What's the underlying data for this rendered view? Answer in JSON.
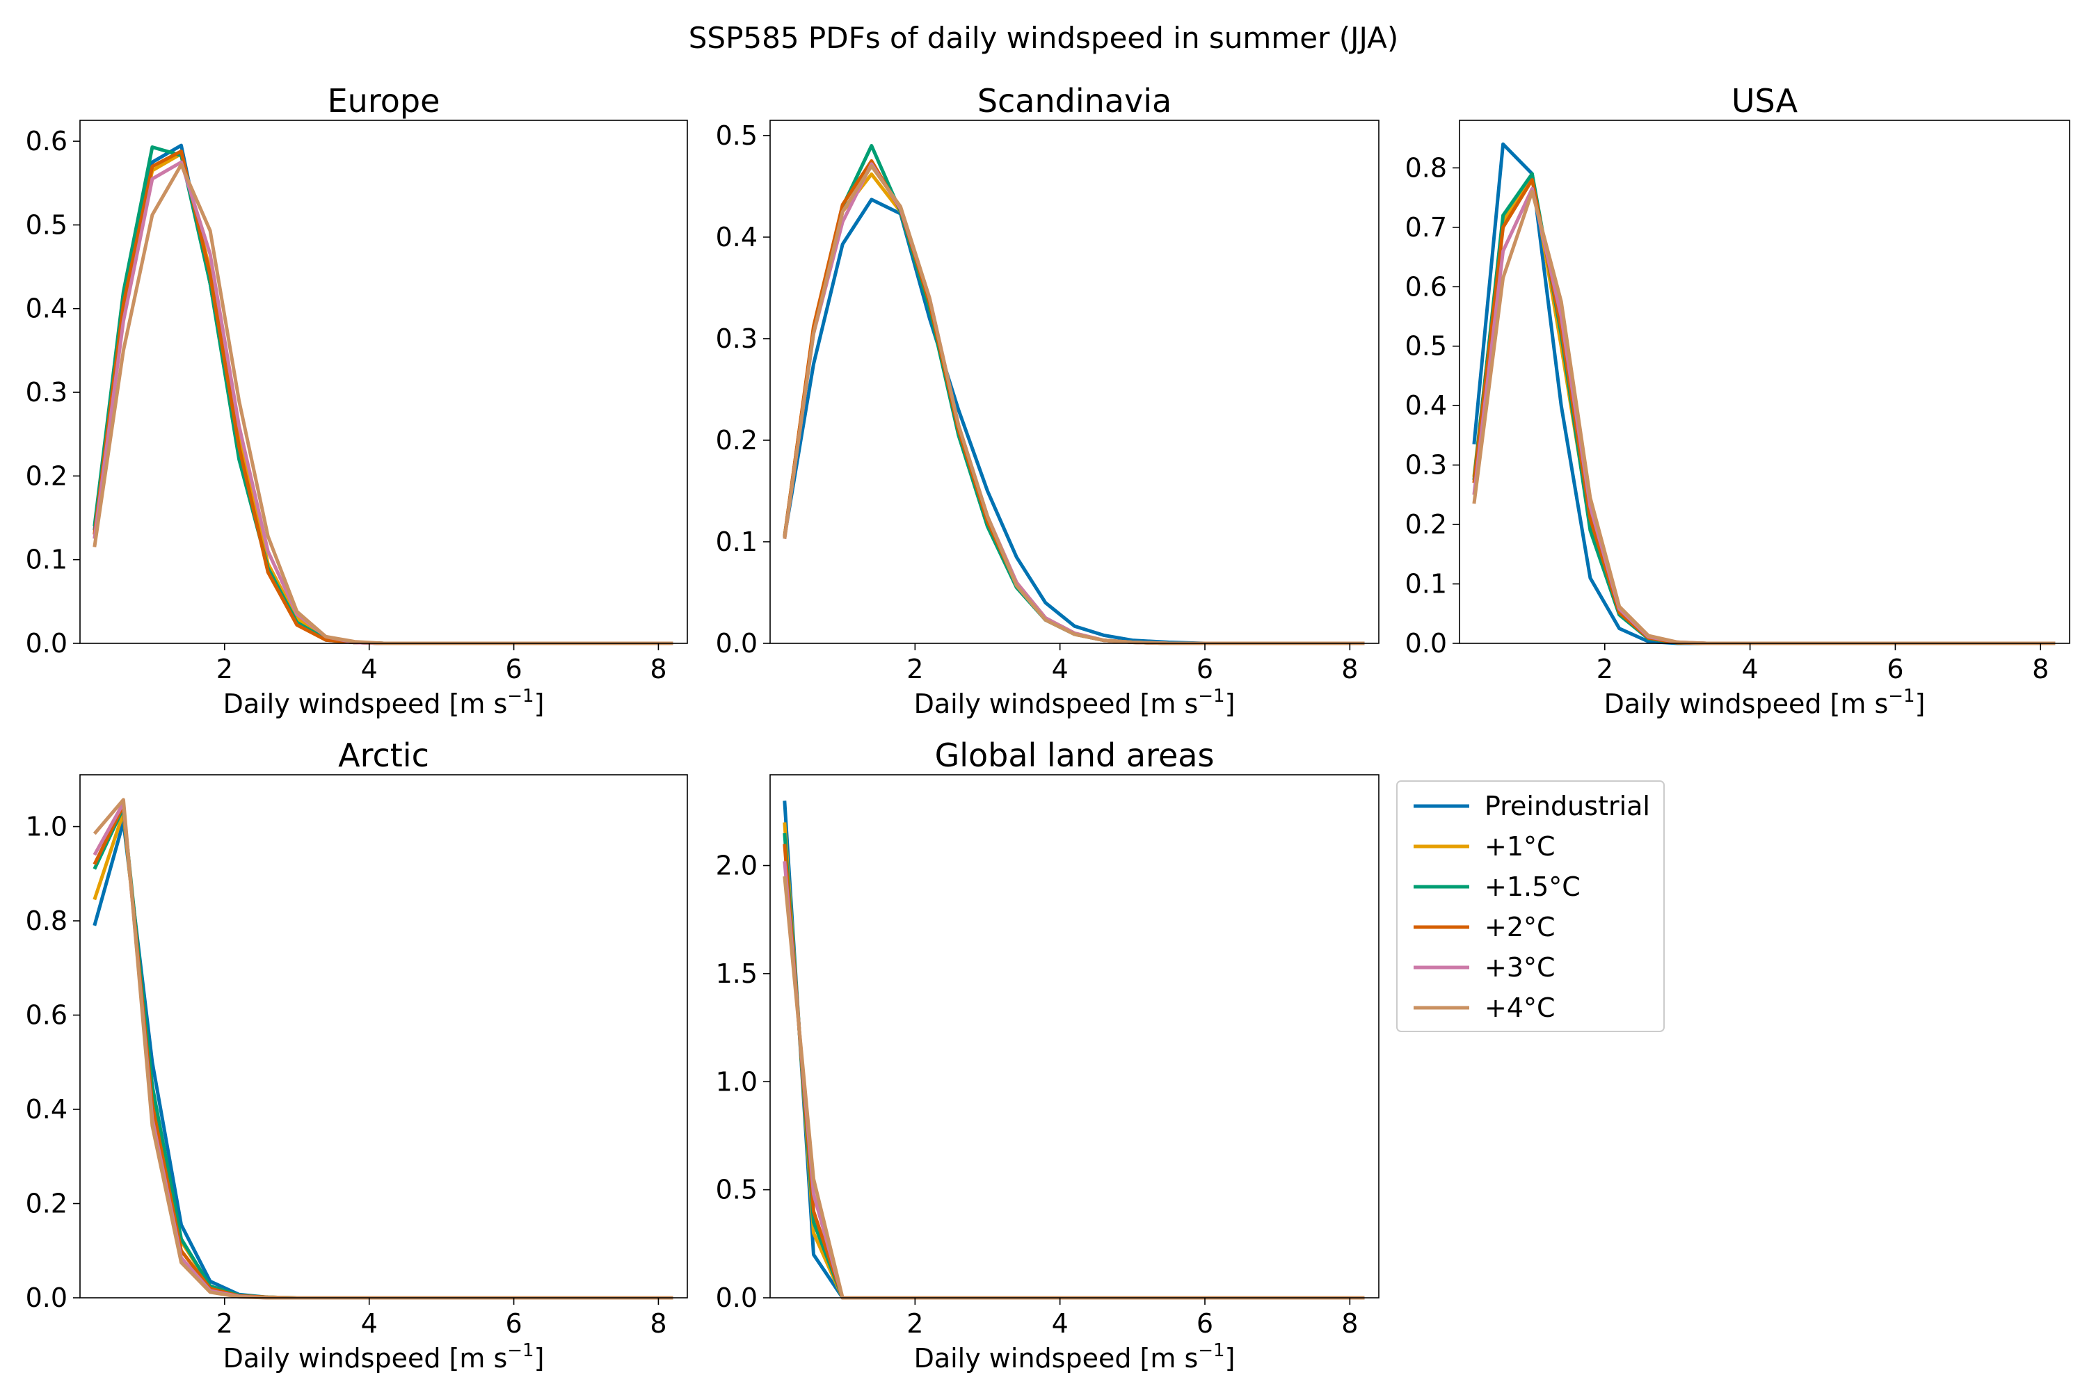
{
  "figure": {
    "title": "SSP585 PDFs of daily windspeed in summer (JJA)"
  },
  "legend": {
    "placement": "right of bottom row, upper",
    "entries": [
      {
        "name": "Preindustrial",
        "color": "#0072b2"
      },
      {
        "name": "+1°C",
        "color": "#e69f00"
      },
      {
        "name": "+1.5°C",
        "color": "#009e73"
      },
      {
        "name": "+2°C",
        "color": "#d55e00"
      },
      {
        "name": "+3°C",
        "color": "#cc79a7"
      },
      {
        "name": "+4°C",
        "color": "#ca9161"
      }
    ]
  },
  "chart_data": [
    {
      "type": "line",
      "title": "Europe",
      "xlabel": "Daily windspeed [m s",
      "xlabel_sup": "−1",
      "xlabel_end": "]",
      "xlim": [
        0,
        8.4
      ],
      "ylim": [
        0,
        0.625
      ],
      "xticks": [
        2,
        4,
        6,
        8
      ],
      "xtick_labels": [
        "2",
        "4",
        "6",
        "8"
      ],
      "yticks": [
        0,
        0.1,
        0.2,
        0.3,
        0.4,
        0.5,
        0.6
      ],
      "ytick_labels": [
        "0.0",
        "0.1",
        "0.2",
        "0.3",
        "0.4",
        "0.5",
        "0.6"
      ],
      "x": [
        0.2,
        0.6,
        1.0,
        1.4,
        1.8,
        2.2,
        2.6,
        3.0,
        3.4,
        3.8,
        4.2,
        4.6,
        5.0,
        5.5,
        6.0,
        6.5,
        7.0,
        7.5,
        8.2
      ],
      "series": [
        {
          "name": "Preindustrial",
          "values": [
            0.135,
            0.415,
            0.575,
            0.595,
            0.43,
            0.23,
            0.09,
            0.025,
            0.004,
            0.001,
            0,
            0,
            0,
            0,
            0,
            0,
            0,
            0,
            0
          ]
        },
        {
          "name": "+1°C",
          "values": [
            0.13,
            0.4,
            0.565,
            0.585,
            0.445,
            0.245,
            0.095,
            0.03,
            0.006,
            0.001,
            0,
            0,
            0,
            0,
            0,
            0,
            0,
            0,
            0
          ]
        },
        {
          "name": "+1.5°C",
          "values": [
            0.14,
            0.42,
            0.593,
            0.583,
            0.43,
            0.22,
            0.09,
            0.025,
            0.005,
            0.001,
            0,
            0,
            0,
            0,
            0,
            0,
            0,
            0,
            0
          ]
        },
        {
          "name": "+2°C",
          "values": [
            0.13,
            0.405,
            0.57,
            0.588,
            0.44,
            0.235,
            0.085,
            0.022,
            0.004,
            0.001,
            0,
            0,
            0,
            0,
            0,
            0,
            0,
            0,
            0
          ]
        },
        {
          "name": "+3°C",
          "values": [
            0.125,
            0.385,
            0.555,
            0.575,
            0.465,
            0.26,
            0.11,
            0.035,
            0.008,
            0.001,
            0,
            0,
            0,
            0,
            0,
            0,
            0,
            0,
            0
          ]
        },
        {
          "name": "+4°C",
          "values": [
            0.115,
            0.35,
            0.512,
            0.572,
            0.493,
            0.29,
            0.128,
            0.038,
            0.008,
            0.002,
            0,
            0,
            0,
            0,
            0,
            0,
            0,
            0,
            0
          ]
        }
      ]
    },
    {
      "type": "line",
      "title": "Scandinavia",
      "xlabel": "Daily windspeed [m s",
      "xlabel_sup": "−1",
      "xlabel_end": "]",
      "xlim": [
        0,
        8.4
      ],
      "ylim": [
        0,
        0.515
      ],
      "xticks": [
        2,
        4,
        6,
        8
      ],
      "xtick_labels": [
        "2",
        "4",
        "6",
        "8"
      ],
      "yticks": [
        0,
        0.1,
        0.2,
        0.3,
        0.4,
        0.5
      ],
      "ytick_labels": [
        "0.0",
        "0.1",
        "0.2",
        "0.3",
        "0.4",
        "0.5"
      ],
      "x": [
        0.2,
        0.6,
        1.0,
        1.4,
        1.8,
        2.2,
        2.6,
        3.0,
        3.4,
        3.8,
        4.2,
        4.6,
        5.0,
        5.5,
        6.0,
        6.5,
        7.0,
        7.5,
        8.2
      ],
      "series": [
        {
          "name": "Preindustrial",
          "values": [
            0.105,
            0.275,
            0.393,
            0.437,
            0.423,
            0.32,
            0.23,
            0.15,
            0.085,
            0.04,
            0.017,
            0.008,
            0.003,
            0.001,
            0,
            0,
            0,
            0,
            0
          ]
        },
        {
          "name": "+1°C",
          "values": [
            0.105,
            0.31,
            0.425,
            0.462,
            0.425,
            0.33,
            0.21,
            0.125,
            0.06,
            0.025,
            0.01,
            0.003,
            0.001,
            0,
            0,
            0,
            0,
            0,
            0
          ]
        },
        {
          "name": "+1.5°C",
          "values": [
            0.105,
            0.31,
            0.43,
            0.49,
            0.425,
            0.33,
            0.205,
            0.115,
            0.055,
            0.023,
            0.009,
            0.003,
            0.001,
            0,
            0,
            0,
            0,
            0,
            0
          ]
        },
        {
          "name": "+2°C",
          "values": [
            0.105,
            0.312,
            0.432,
            0.475,
            0.427,
            0.335,
            0.21,
            0.12,
            0.058,
            0.024,
            0.009,
            0.003,
            0.001,
            0,
            0,
            0,
            0,
            0,
            0
          ]
        },
        {
          "name": "+3°C",
          "values": [
            0.103,
            0.305,
            0.415,
            0.472,
            0.428,
            0.34,
            0.215,
            0.125,
            0.06,
            0.025,
            0.01,
            0.003,
            0.001,
            0,
            0,
            0,
            0,
            0,
            0
          ]
        },
        {
          "name": "+4°C",
          "values": [
            0.103,
            0.305,
            0.425,
            0.47,
            0.43,
            0.34,
            0.215,
            0.125,
            0.057,
            0.023,
            0.009,
            0.003,
            0.001,
            0,
            0,
            0,
            0,
            0,
            0
          ]
        }
      ]
    },
    {
      "type": "line",
      "title": "USA",
      "xlabel": "Daily windspeed [m s",
      "xlabel_sup": "−1",
      "xlabel_end": "]",
      "xlim": [
        0,
        8.4
      ],
      "ylim": [
        0,
        0.88
      ],
      "xticks": [
        2,
        4,
        6,
        8
      ],
      "xtick_labels": [
        "2",
        "4",
        "6",
        "8"
      ],
      "yticks": [
        0,
        0.1,
        0.2,
        0.3,
        0.4,
        0.5,
        0.6,
        0.7,
        0.8
      ],
      "ytick_labels": [
        "0.0",
        "0.1",
        "0.2",
        "0.3",
        "0.4",
        "0.5",
        "0.6",
        "0.7",
        "0.8"
      ],
      "x": [
        0.2,
        0.6,
        1.0,
        1.4,
        1.8,
        2.2,
        2.6,
        3.0,
        3.4,
        3.8,
        4.2,
        4.6,
        5.0,
        5.5,
        6.0,
        6.5,
        7.0,
        7.5,
        8.2
      ],
      "series": [
        {
          "name": "Preindustrial",
          "values": [
            0.335,
            0.84,
            0.79,
            0.4,
            0.11,
            0.025,
            0.003,
            0,
            0,
            0,
            0,
            0,
            0,
            0,
            0,
            0,
            0,
            0,
            0
          ]
        },
        {
          "name": "+1°C",
          "values": [
            0.28,
            0.71,
            0.785,
            0.5,
            0.2,
            0.05,
            0.008,
            0.001,
            0,
            0,
            0,
            0,
            0,
            0,
            0,
            0,
            0,
            0,
            0
          ]
        },
        {
          "name": "+1.5°C",
          "values": [
            0.275,
            0.72,
            0.79,
            0.52,
            0.19,
            0.048,
            0.008,
            0.001,
            0,
            0,
            0,
            0,
            0,
            0,
            0,
            0,
            0,
            0,
            0
          ]
        },
        {
          "name": "+2°C",
          "values": [
            0.27,
            0.7,
            0.78,
            0.53,
            0.21,
            0.052,
            0.009,
            0.001,
            0,
            0,
            0,
            0,
            0,
            0,
            0,
            0,
            0,
            0,
            0
          ]
        },
        {
          "name": "+3°C",
          "values": [
            0.25,
            0.66,
            0.765,
            0.55,
            0.23,
            0.058,
            0.011,
            0.002,
            0,
            0,
            0,
            0,
            0,
            0,
            0,
            0,
            0,
            0,
            0
          ]
        },
        {
          "name": "+4°C",
          "values": [
            0.235,
            0.615,
            0.76,
            0.575,
            0.245,
            0.062,
            0.013,
            0.002,
            0,
            0,
            0,
            0,
            0,
            0,
            0,
            0,
            0,
            0,
            0
          ]
        }
      ]
    },
    {
      "type": "line",
      "title": "Arctic",
      "xlabel": "Daily windspeed [m s",
      "xlabel_sup": "−1",
      "xlabel_end": "]",
      "xlim": [
        0,
        8.4
      ],
      "ylim": [
        0,
        1.11
      ],
      "xticks": [
        2,
        4,
        6,
        8
      ],
      "xtick_labels": [
        "2",
        "4",
        "6",
        "8"
      ],
      "yticks": [
        0,
        0.2,
        0.4,
        0.6,
        0.8,
        1.0
      ],
      "ytick_labels": [
        "0.0",
        "0.2",
        "0.4",
        "0.6",
        "0.8",
        "1.0"
      ],
      "x": [
        0.2,
        0.6,
        1.0,
        1.4,
        1.8,
        2.2,
        2.6,
        3.0,
        3.4,
        3.8,
        4.2,
        4.6,
        5.0,
        5.5,
        6.0,
        6.5,
        7.0,
        7.5,
        8.2
      ],
      "series": [
        {
          "name": "Preindustrial",
          "values": [
            0.79,
            1.01,
            0.5,
            0.155,
            0.035,
            0.007,
            0.001,
            0,
            0,
            0,
            0,
            0,
            0,
            0,
            0,
            0,
            0,
            0,
            0
          ]
        },
        {
          "name": "+1°C",
          "values": [
            0.845,
            1.03,
            0.43,
            0.12,
            0.025,
            0.005,
            0.001,
            0,
            0,
            0,
            0,
            0,
            0,
            0,
            0,
            0,
            0,
            0,
            0
          ]
        },
        {
          "name": "+1.5°C",
          "values": [
            0.91,
            1.04,
            0.45,
            0.125,
            0.025,
            0.005,
            0.001,
            0,
            0,
            0,
            0,
            0,
            0,
            0,
            0,
            0,
            0,
            0,
            0
          ]
        },
        {
          "name": "+2°C",
          "values": [
            0.92,
            1.045,
            0.41,
            0.1,
            0.02,
            0.004,
            0.001,
            0,
            0,
            0,
            0,
            0,
            0,
            0,
            0,
            0,
            0,
            0,
            0
          ]
        },
        {
          "name": "+3°C",
          "values": [
            0.94,
            1.05,
            0.38,
            0.085,
            0.015,
            0.003,
            0,
            0,
            0,
            0,
            0,
            0,
            0,
            0,
            0,
            0,
            0,
            0,
            0
          ]
        },
        {
          "name": "+4°C",
          "values": [
            0.985,
            1.057,
            0.365,
            0.075,
            0.012,
            0.002,
            0,
            0,
            0,
            0,
            0,
            0,
            0,
            0,
            0,
            0,
            0,
            0,
            0
          ]
        }
      ]
    },
    {
      "type": "line",
      "title": "Global land areas",
      "xlabel": "Daily windspeed [m s",
      "xlabel_sup": "−1",
      "xlabel_end": "]",
      "xlim": [
        0,
        8.4
      ],
      "ylim": [
        0,
        2.42
      ],
      "xticks": [
        2,
        4,
        6,
        8
      ],
      "xtick_labels": [
        "2",
        "4",
        "6",
        "8"
      ],
      "yticks": [
        0,
        0.5,
        1.0,
        1.5,
        2.0
      ],
      "ytick_labels": [
        "0.0",
        "0.5",
        "1.0",
        "1.5",
        "2.0"
      ],
      "x": [
        0.2,
        0.6,
        1.0,
        1.4,
        1.8,
        2.2,
        2.6,
        3.0,
        3.4,
        3.8,
        4.2,
        4.6,
        5.0,
        5.5,
        6.0,
        6.5,
        7.0,
        7.5,
        8.2
      ],
      "series": [
        {
          "name": "Preindustrial",
          "values": [
            2.3,
            0.2,
            0,
            0,
            0,
            0,
            0,
            0,
            0,
            0,
            0,
            0,
            0,
            0,
            0,
            0,
            0,
            0,
            0
          ]
        },
        {
          "name": "+1°C",
          "values": [
            2.2,
            0.3,
            0,
            0,
            0,
            0,
            0,
            0,
            0,
            0,
            0,
            0,
            0,
            0,
            0,
            0,
            0,
            0,
            0
          ]
        },
        {
          "name": "+1.5°C",
          "values": [
            2.15,
            0.35,
            0,
            0,
            0,
            0,
            0,
            0,
            0,
            0,
            0,
            0,
            0,
            0,
            0,
            0,
            0,
            0,
            0
          ]
        },
        {
          "name": "+2°C",
          "values": [
            2.1,
            0.4,
            0,
            0,
            0,
            0,
            0,
            0,
            0,
            0,
            0,
            0,
            0,
            0,
            0,
            0,
            0,
            0,
            0
          ]
        },
        {
          "name": "+3°C",
          "values": [
            2.02,
            0.48,
            0,
            0,
            0,
            0,
            0,
            0,
            0,
            0,
            0,
            0,
            0,
            0,
            0,
            0,
            0,
            0,
            0
          ]
        },
        {
          "name": "+4°C",
          "values": [
            1.95,
            0.55,
            0,
            0,
            0,
            0,
            0,
            0,
            0,
            0,
            0,
            0,
            0,
            0,
            0,
            0,
            0,
            0,
            0
          ]
        }
      ]
    }
  ]
}
